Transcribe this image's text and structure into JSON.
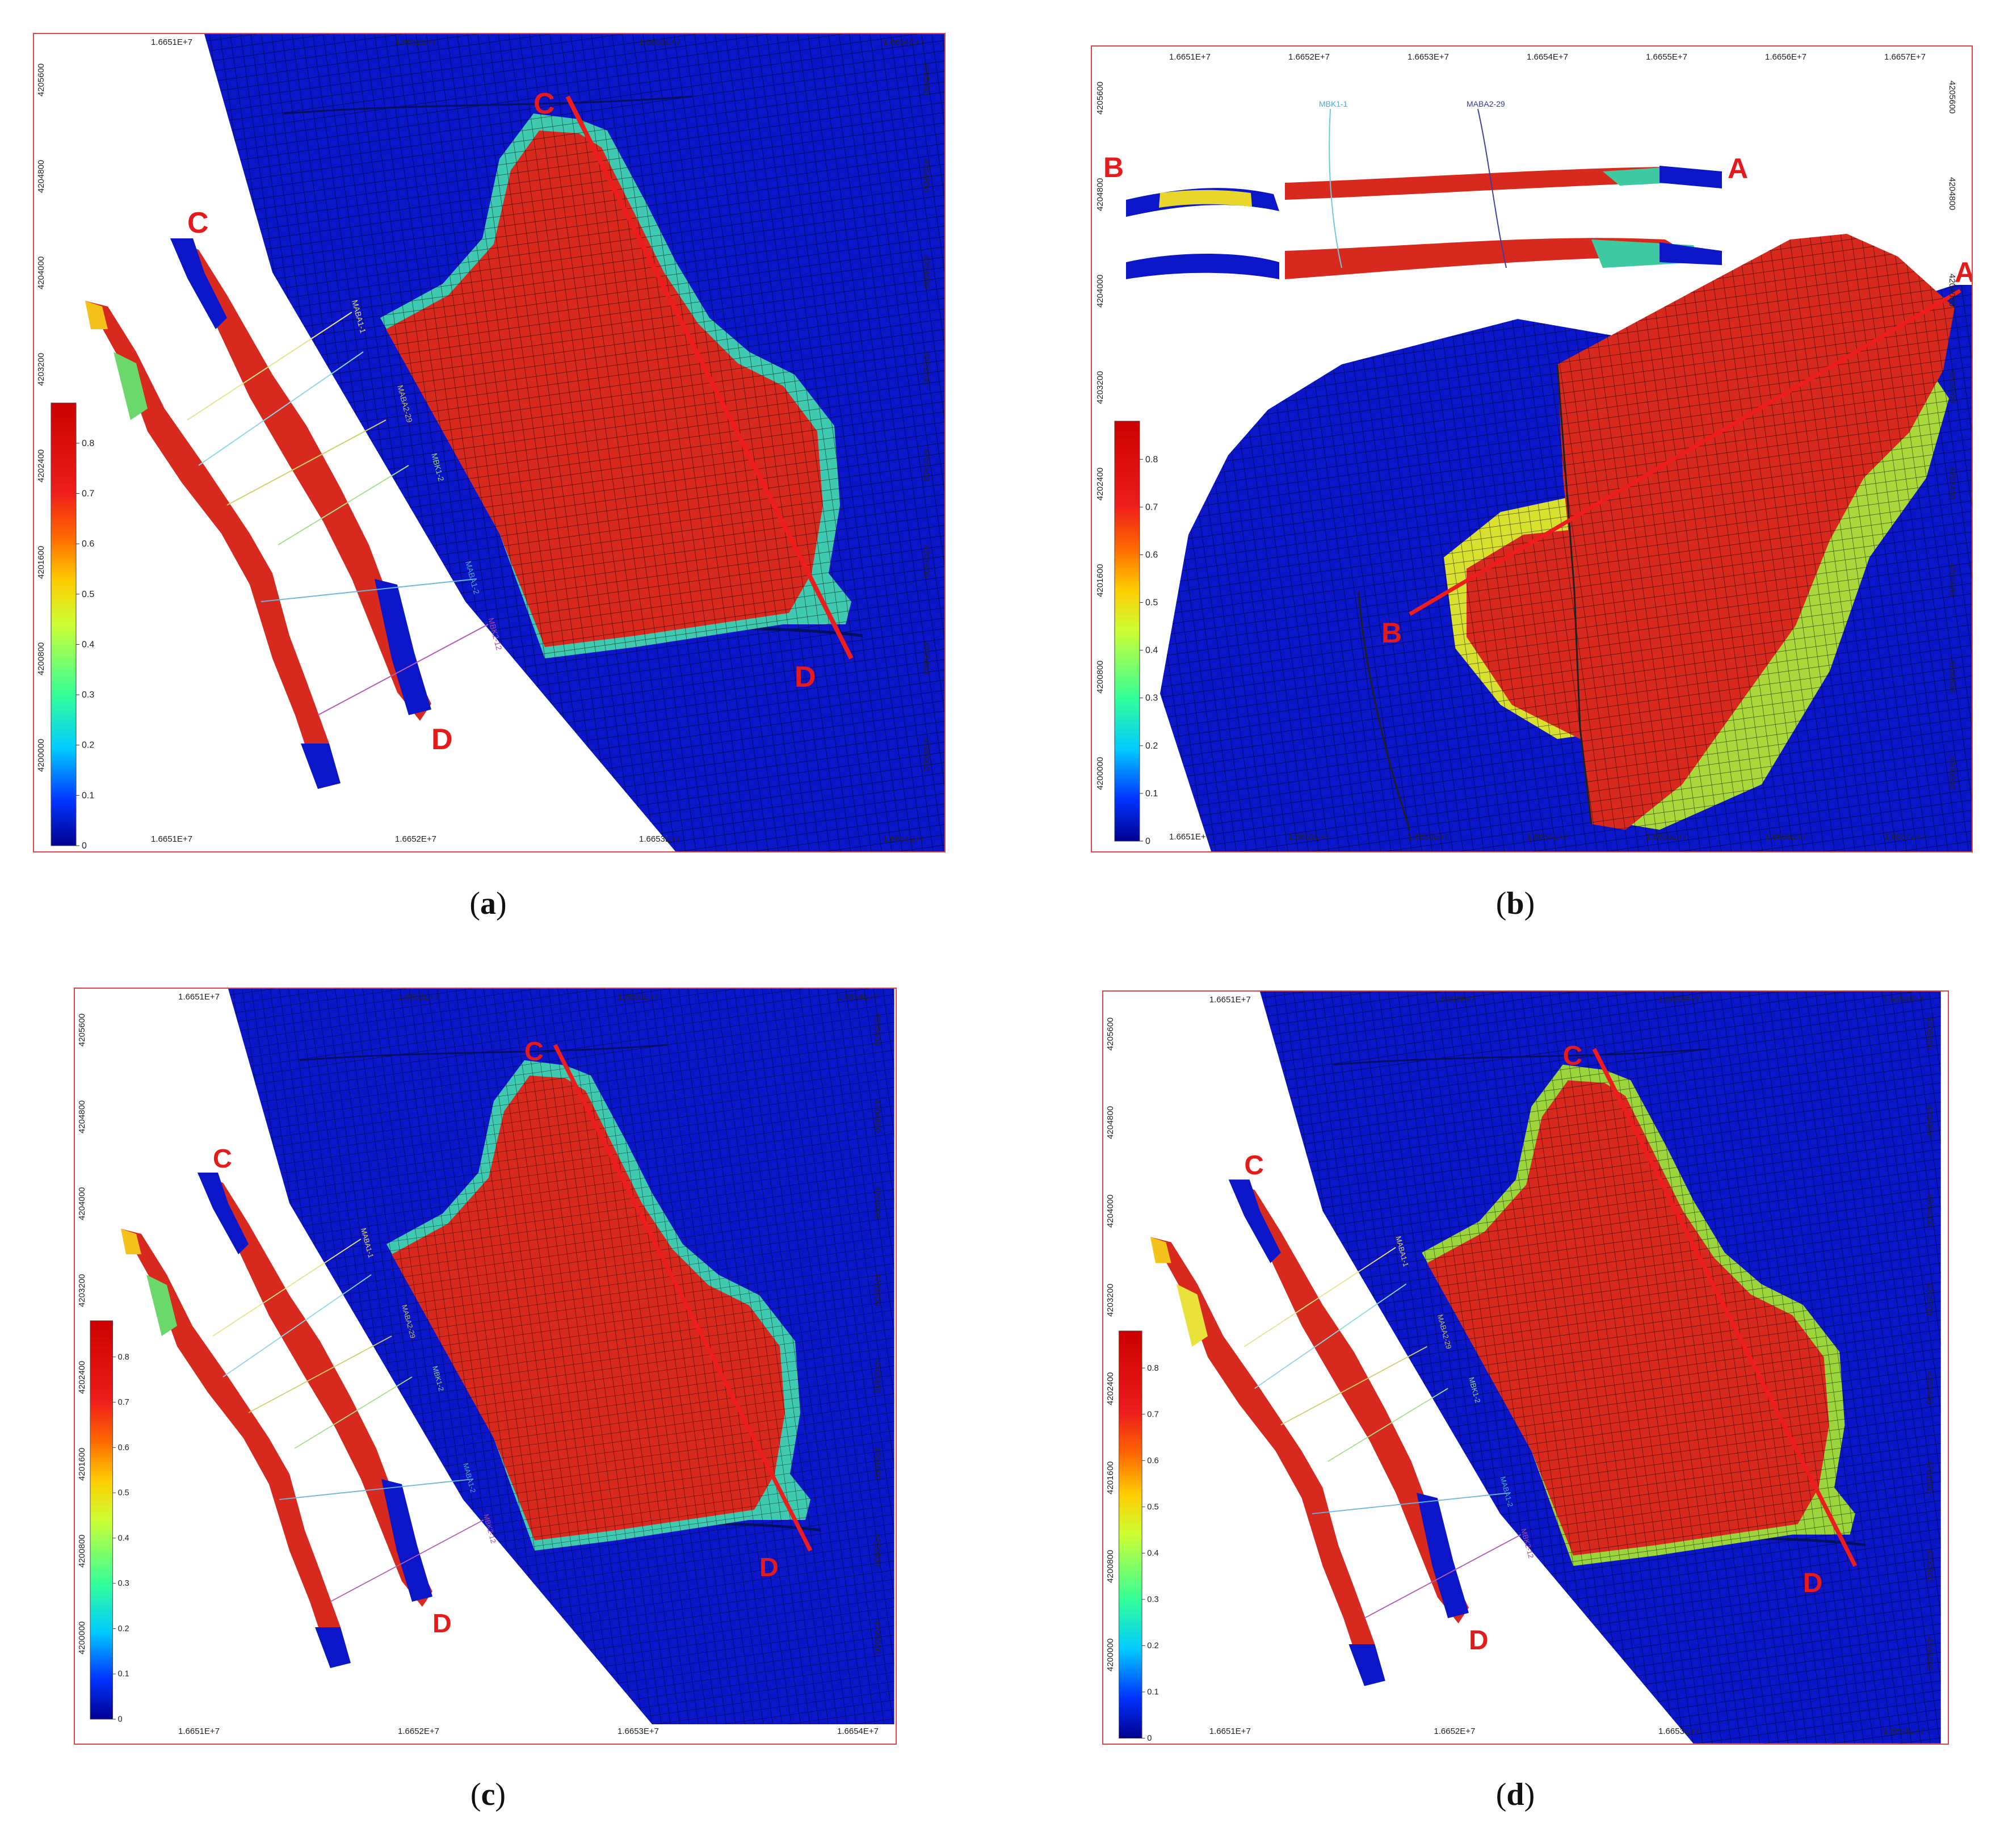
{
  "colors": {
    "low": "#0a16c8",
    "high": "#d8291e",
    "section_line": "#ee1c1c",
    "label": "#e61a1a",
    "frame": "#d24a4a"
  },
  "x_ticks": [
    "1.6651E+7",
    "1.6652E+7",
    "1.6653E+7",
    "1.6654E+7",
    "1.6655E+7",
    "1.6656E+7",
    "1.6657E+7"
  ],
  "y_ticks": [
    "4205600",
    "4204800",
    "4204000",
    "4203200",
    "4202400",
    "4201600",
    "4200800",
    "4200000"
  ],
  "colorbar": {
    "ticks": [
      "0.8",
      "0.7",
      "0.6",
      "0.5",
      "0.4",
      "0.3",
      "0.2",
      "0.1",
      "0"
    ],
    "values": [
      0.8,
      0.7,
      0.6,
      0.5,
      0.4,
      0.3,
      0.2,
      0.1,
      0
    ],
    "max": 0.88
  },
  "section_cd": {
    "start": "C",
    "end": "D"
  },
  "section_ab": {
    "start": "A",
    "end": "B"
  },
  "wells_cd": [
    "MABA1-1",
    "MABA2-29",
    "MBK1-2",
    "MABA1-2",
    "MBK2-12"
  ],
  "wells_ab": [
    "MBK1-1",
    "MABA2-29"
  ],
  "panels": [
    {
      "id": "a",
      "caption": "a"
    },
    {
      "id": "b",
      "caption": "b"
    },
    {
      "id": "c",
      "caption": "c"
    },
    {
      "id": "d",
      "caption": "d"
    }
  ]
}
